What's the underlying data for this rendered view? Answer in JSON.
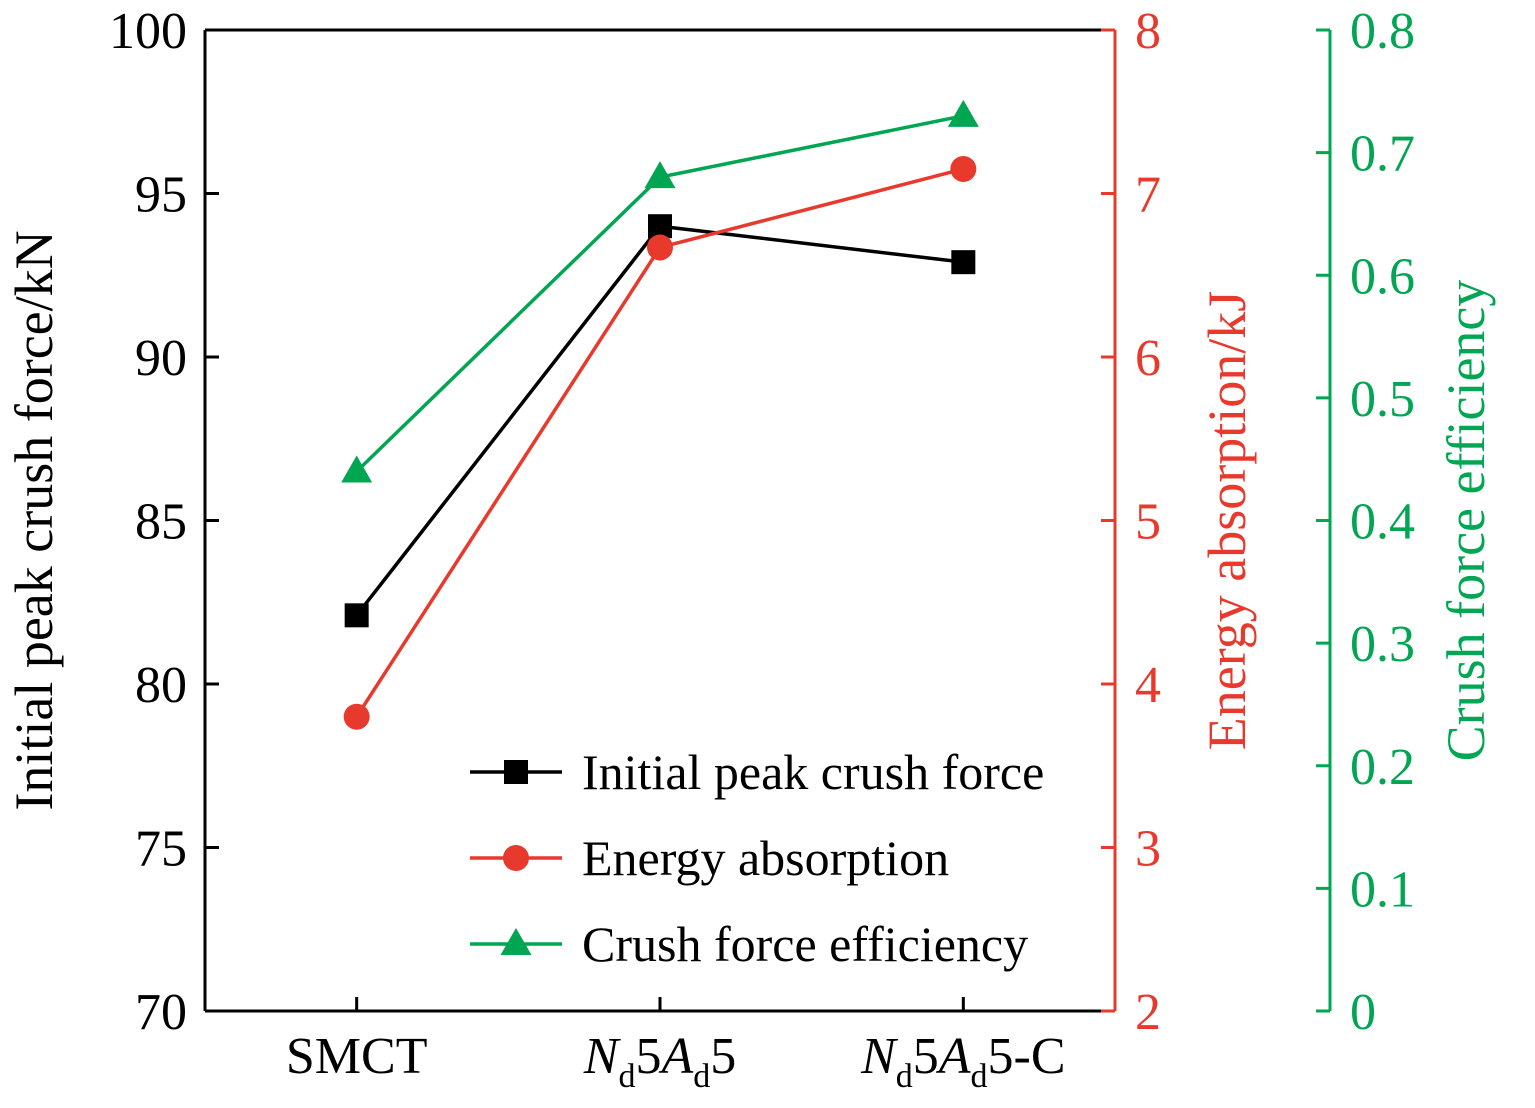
{
  "chart_data": {
    "type": "line",
    "title": "",
    "categories": [
      "SMCT",
      "Nd5Ad5",
      "Nd5Ad5-C"
    ],
    "categories_rich": [
      [
        {
          "t": "SMCT"
        }
      ],
      [
        {
          "t": "N",
          "i": true
        },
        {
          "t": "d",
          "sub": true
        },
        {
          "t": "5"
        },
        {
          "t": "A",
          "i": true
        },
        {
          "t": "d",
          "sub": true
        },
        {
          "t": "5"
        }
      ],
      [
        {
          "t": "N",
          "i": true
        },
        {
          "t": "d",
          "sub": true
        },
        {
          "t": "5"
        },
        {
          "t": "A",
          "i": true
        },
        {
          "t": "d",
          "sub": true
        },
        {
          "t": "5-C"
        }
      ]
    ],
    "series": [
      {
        "name": "Initial peak crush force",
        "axis": "left",
        "color": "#000000",
        "marker": "square",
        "values": [
          82.1,
          94.0,
          92.9
        ]
      },
      {
        "name": "Energy absorption",
        "axis": "right1",
        "color": "#e8392d",
        "marker": "circle",
        "values": [
          3.8,
          6.67,
          7.15
        ]
      },
      {
        "name": "Crush force efficiency",
        "axis": "right2",
        "color": "#00a651",
        "marker": "triangle",
        "values": [
          0.44,
          0.68,
          0.73
        ]
      }
    ],
    "axes": {
      "left": {
        "label": "Initial peak crush force/kN",
        "min": 70,
        "max": 100,
        "step": 5,
        "color": "#000000",
        "tick_labels": [
          "70",
          "75",
          "80",
          "85",
          "90",
          "95",
          "100"
        ]
      },
      "right1": {
        "label": "Energy absorption/kJ",
        "min": 2,
        "max": 8,
        "step": 1,
        "color": "#e8392d",
        "tick_labels": [
          "2",
          "3",
          "4",
          "5",
          "6",
          "7",
          "8"
        ]
      },
      "right2": {
        "label": "Crush force efficiency",
        "min": 0,
        "max": 0.8,
        "step": 0.1,
        "color": "#00a651",
        "tick_labels": [
          "0",
          "0.1",
          "0.2",
          "0.3",
          "0.4",
          "0.5",
          "0.6",
          "0.7",
          "0.8"
        ]
      }
    },
    "legend": {
      "position": "inside-bottom-center",
      "entries": [
        "Initial peak crush force",
        "Energy absorption",
        "Crush force efficiency"
      ]
    },
    "grid": "off"
  }
}
